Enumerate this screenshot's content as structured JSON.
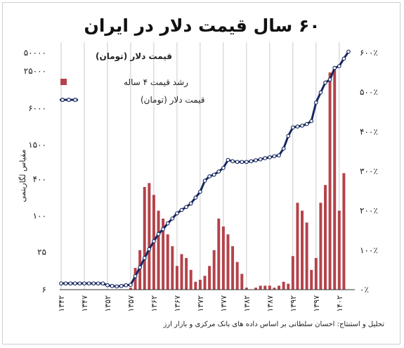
{
  "title": "۶۰ سال قیمت دلار در ایران",
  "source_line1": "تحلیل و استنتاج: احسان سلطانی بر اساس داده های بانک مرکزی و بازار ارز",
  "colors": {
    "line": "#17275e",
    "bar": "#b4434a",
    "grid": "#bdbdbd",
    "text": "#222222"
  },
  "chart_data": {
    "type": "bar+line",
    "title": "۶۰ سال قیمت دلار در ایران",
    "y_left_label": "مقیاس لگاریتمی",
    "y_left_unit_label": "قیمت دلار (تومان)",
    "y_left_ticks": [
      "۶",
      "۲۵",
      "۱۰۰",
      "۴۰۰",
      "۱۵۰۰",
      "۶۰۰۰",
      "۲۵۰۰۰",
      "۵۰۰۰۰"
    ],
    "y_left_tick_values": [
      6,
      25,
      100,
      400,
      1500,
      6000,
      25000,
      50000
    ],
    "y_left_scale": "log",
    "y_right_ticks": [
      "۰٪",
      "۱۰۰٪",
      "۲۰۰٪",
      "۳۰۰٪",
      "۴۰۰٪",
      "۵۰۰٪",
      "۶۰۰٪"
    ],
    "y_right_range": [
      0,
      600
    ],
    "x_tick_labels": [
      "۱۳۴۲",
      "۱۳۴۷",
      "۱۳۵۲",
      "۱۳۵۷",
      "۱۳۶۲",
      "۱۳۶۷",
      "۱۳۷۲",
      "۱۳۷۷",
      "۱۳۸۲",
      "۱۳۸۷",
      "۱۳۹۲",
      "۱۳۹۷",
      "۱۴۰۲"
    ],
    "x_range": [
      1342,
      1402
    ],
    "legend": {
      "heading": "قیمت دلار (تومان)",
      "items": [
        {
          "label": "رشد قیمت ۴ ساله",
          "kind": "bar"
        },
        {
          "label": "قیمت دلار (تومان)",
          "kind": "line"
        }
      ]
    },
    "series": [
      {
        "name": "رشد قیمت ۴ ساله",
        "kind": "bar",
        "axis": "right",
        "points": [
          [
            1357,
            5
          ],
          [
            1358,
            55
          ],
          [
            1359,
            100
          ],
          [
            1360,
            260
          ],
          [
            1361,
            270
          ],
          [
            1362,
            240
          ],
          [
            1363,
            200
          ],
          [
            1364,
            180
          ],
          [
            1365,
            140
          ],
          [
            1366,
            110
          ],
          [
            1367,
            60
          ],
          [
            1368,
            90
          ],
          [
            1369,
            80
          ],
          [
            1370,
            50
          ],
          [
            1371,
            20
          ],
          [
            1372,
            25
          ],
          [
            1373,
            35
          ],
          [
            1374,
            60
          ],
          [
            1375,
            100
          ],
          [
            1376,
            180
          ],
          [
            1377,
            160
          ],
          [
            1378,
            140
          ],
          [
            1379,
            110
          ],
          [
            1380,
            70
          ],
          [
            1381,
            40
          ],
          [
            1382,
            5
          ],
          [
            1384,
            5
          ],
          [
            1385,
            10
          ],
          [
            1386,
            10
          ],
          [
            1387,
            10
          ],
          [
            1388,
            5
          ],
          [
            1389,
            10
          ],
          [
            1390,
            20
          ],
          [
            1391,
            15
          ],
          [
            1392,
            85
          ],
          [
            1393,
            220
          ],
          [
            1394,
            200
          ],
          [
            1395,
            170
          ],
          [
            1396,
            50
          ],
          [
            1397,
            80
          ],
          [
            1398,
            220
          ],
          [
            1399,
            265
          ],
          [
            1400,
            550
          ],
          [
            1401,
            565
          ],
          [
            1402,
            200
          ],
          [
            1403,
            295
          ]
        ]
      },
      {
        "name": "قیمت دلار (تومان)",
        "kind": "line",
        "axis": "left",
        "points": [
          [
            1342,
            7.6
          ],
          [
            1343,
            7.6
          ],
          [
            1344,
            7.6
          ],
          [
            1345,
            7.6
          ],
          [
            1346,
            7.6
          ],
          [
            1347,
            7.6
          ],
          [
            1348,
            7.6
          ],
          [
            1349,
            7.6
          ],
          [
            1350,
            7.6
          ],
          [
            1351,
            7.6
          ],
          [
            1352,
            7.1
          ],
          [
            1353,
            6.9
          ],
          [
            1354,
            6.8
          ],
          [
            1355,
            6.9
          ],
          [
            1356,
            7.1
          ],
          [
            1357,
            7.2
          ],
          [
            1358,
            10
          ],
          [
            1359,
            14
          ],
          [
            1360,
            20
          ],
          [
            1361,
            28
          ],
          [
            1362,
            38
          ],
          [
            1363,
            50
          ],
          [
            1364,
            60
          ],
          [
            1365,
            75
          ],
          [
            1366,
            90
          ],
          [
            1367,
            110
          ],
          [
            1368,
            125
          ],
          [
            1369,
            140
          ],
          [
            1370,
            160
          ],
          [
            1371,
            200
          ],
          [
            1372,
            250
          ],
          [
            1373,
            380
          ],
          [
            1374,
            450
          ],
          [
            1375,
            480
          ],
          [
            1376,
            540
          ],
          [
            1377,
            620
          ],
          [
            1378,
            840
          ],
          [
            1379,
            800
          ],
          [
            1380,
            780
          ],
          [
            1381,
            780
          ],
          [
            1382,
            780
          ],
          [
            1383,
            800
          ],
          [
            1384,
            830
          ],
          [
            1385,
            860
          ],
          [
            1386,
            900
          ],
          [
            1387,
            930
          ],
          [
            1388,
            970
          ],
          [
            1389,
            1000
          ],
          [
            1390,
            1300
          ],
          [
            1391,
            2100
          ],
          [
            1392,
            2900
          ],
          [
            1393,
            3000
          ],
          [
            1394,
            3100
          ],
          [
            1395,
            3300
          ],
          [
            1396,
            3700
          ],
          [
            1397,
            7500
          ],
          [
            1398,
            11000
          ],
          [
            1399,
            16000
          ],
          [
            1400,
            18000
          ],
          [
            1401,
            28000
          ],
          [
            1402,
            30000
          ],
          [
            1403,
            40000
          ],
          [
            1404,
            52000
          ]
        ]
      }
    ],
    "grid": "vertical"
  }
}
